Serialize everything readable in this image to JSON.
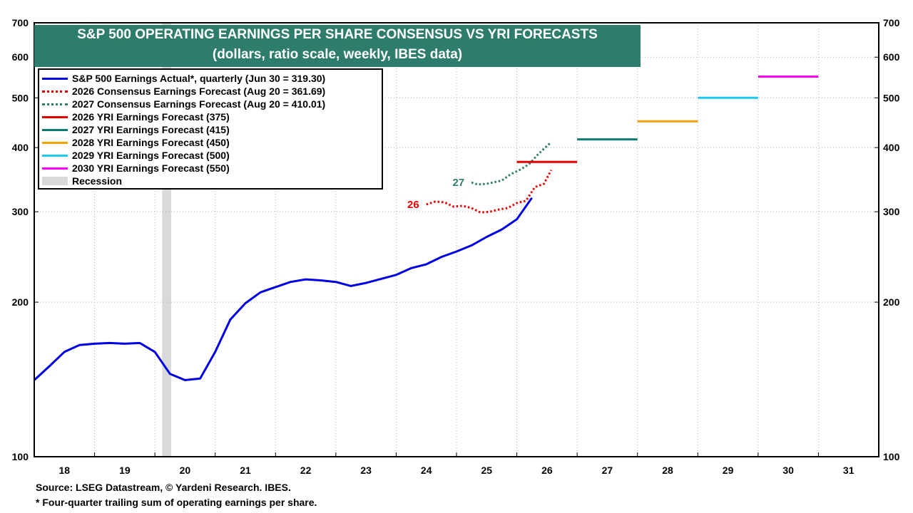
{
  "title": {
    "line1": "S&P 500 OPERATING EARNINGS PER SHARE CONSENSUS VS YRI FORECASTS",
    "line2": "(dollars, ratio scale, weekly, IBES data)"
  },
  "legend": [
    {
      "label": "S&P 500 Earnings Actual*, quarterly (Jun 30 = 319.30)",
      "color": "#0000e6",
      "style": "solid"
    },
    {
      "label": "2026 Consensus Earnings Forecast (Aug 20 = 361.69)",
      "color": "#e60000",
      "style": "dotted"
    },
    {
      "label": "2027 Consensus Earnings Forecast (Aug 20 = 410.01)",
      "color": "#2e7d6c",
      "style": "dotted"
    },
    {
      "label": "2026 YRI Earnings Forecast (375)",
      "color": "#e60000",
      "style": "solid"
    },
    {
      "label": "2027 YRI Earnings Forecast (415)",
      "color": "#0b7a6e",
      "style": "solid"
    },
    {
      "label": "2028 YRI Earnings Forecast (450)",
      "color": "#f5a000",
      "style": "solid"
    },
    {
      "label": "2029 YRI Earnings Forecast (500)",
      "color": "#1ec8f0",
      "style": "solid"
    },
    {
      "label": "2030 YRI Earnings Forecast (550)",
      "color": "#ff00ff",
      "style": "solid"
    },
    {
      "label": "Recession",
      "color": "#d9d9d9",
      "style": "box"
    }
  ],
  "footer": {
    "source": "Source: LSEG Datastream, © Yardeni Research. IBES.",
    "note": "* Four-quarter trailing sum of operating earnings per share."
  },
  "chart_data": {
    "type": "line",
    "y_scale": "log",
    "ylim": [
      100,
      700
    ],
    "xlim": [
      2017.5,
      2031.5
    ],
    "y_ticks": [
      100,
      200,
      300,
      400,
      500,
      600,
      700
    ],
    "x_ticks": [
      {
        "label": "18",
        "x": 2018
      },
      {
        "label": "19",
        "x": 2019
      },
      {
        "label": "20",
        "x": 2020
      },
      {
        "label": "21",
        "x": 2021
      },
      {
        "label": "22",
        "x": 2022
      },
      {
        "label": "23",
        "x": 2023
      },
      {
        "label": "24",
        "x": 2024
      },
      {
        "label": "25",
        "x": 2025
      },
      {
        "label": "26",
        "x": 2026
      },
      {
        "label": "27",
        "x": 2027
      },
      {
        "label": "28",
        "x": 2028
      },
      {
        "label": "29",
        "x": 2029
      },
      {
        "label": "30",
        "x": 2030
      },
      {
        "label": "31",
        "x": 2031
      }
    ],
    "grid": true,
    "recession": [
      2019.62,
      2019.77
    ],
    "series": [
      {
        "name": "S&P 500 Earnings Actual*, quarterly (Jun 30 = 319.30)",
        "color": "#0000e6",
        "style": "solid",
        "x": [
          2017.5,
          2017.75,
          2018.0,
          2018.25,
          2018.5,
          2018.75,
          2019.0,
          2019.25,
          2019.5,
          2019.75,
          2020.0,
          2020.25,
          2020.5,
          2020.75,
          2021.0,
          2021.25,
          2021.5,
          2021.75,
          2022.0,
          2022.25,
          2022.5,
          2022.75,
          2023.0,
          2023.25,
          2023.5,
          2023.75,
          2024.0,
          2024.25,
          2024.5,
          2024.75,
          2025.0,
          2025.25,
          2025.5,
          2025.75
        ],
        "values": [
          141.0,
          150.0,
          160.0,
          165.0,
          166.0,
          166.5,
          166.0,
          166.5,
          160.0,
          145.0,
          141.0,
          142.0,
          160.0,
          185.0,
          199.0,
          209.0,
          214.0,
          219.0,
          221.5,
          220.5,
          219.0,
          215.0,
          218.0,
          222.0,
          226.0,
          233.0,
          237.0,
          245.0,
          251.0,
          258.0,
          268.0,
          277.0,
          290.0,
          319.3
        ]
      },
      {
        "name": "2026 Consensus Earnings Forecast (Aug 20 = 361.69)",
        "label": "26",
        "color": "#e60000",
        "style": "dotted",
        "x": [
          2024.0,
          2024.15,
          2024.3,
          2024.45,
          2024.6,
          2024.75,
          2024.9,
          2025.05,
          2025.2,
          2025.35,
          2025.5,
          2025.65,
          2025.8,
          2025.95,
          2026.07
        ],
        "values": [
          310.0,
          314.0,
          313.0,
          307.0,
          308.0,
          305.0,
          299.0,
          300.0,
          303.0,
          305.0,
          312.0,
          315.0,
          335.0,
          340.0,
          361.69
        ]
      },
      {
        "name": "2027 Consensus Earnings Forecast (Aug 20 = 410.01)",
        "label": "27",
        "color": "#2e7d6c",
        "style": "dotted",
        "x": [
          2024.75,
          2024.85,
          2025.0,
          2025.1,
          2025.25,
          2025.4,
          2025.55,
          2025.7,
          2025.85,
          2026.0,
          2026.07
        ],
        "values": [
          342.0,
          339.0,
          340.0,
          342.0,
          345.0,
          355.0,
          362.0,
          371.0,
          388.0,
          403.0,
          410.01
        ]
      },
      {
        "name": "2026 YRI Earnings Forecast (375)",
        "color": "#e60000",
        "style": "solid",
        "x": [
          2025.5,
          2026.5
        ],
        "values": [
          375,
          375
        ]
      },
      {
        "name": "2027 YRI Earnings Forecast (415)",
        "color": "#0b7a6e",
        "style": "solid",
        "x": [
          2026.5,
          2027.5
        ],
        "values": [
          415,
          415
        ]
      },
      {
        "name": "2028 YRI Earnings Forecast (450)",
        "color": "#f5a000",
        "style": "solid",
        "x": [
          2027.5,
          2028.5
        ],
        "values": [
          450,
          450
        ]
      },
      {
        "name": "2029 YRI Earnings Forecast (500)",
        "color": "#1ec8f0",
        "style": "solid",
        "x": [
          2028.5,
          2029.5
        ],
        "values": [
          500,
          500
        ]
      },
      {
        "name": "2030 YRI Earnings Forecast (550)",
        "color": "#ff00ff",
        "style": "solid",
        "x": [
          2029.5,
          2030.5
        ],
        "values": [
          550,
          550
        ]
      }
    ]
  }
}
